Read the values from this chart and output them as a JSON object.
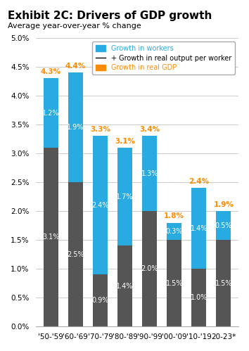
{
  "title": "Exhibit 2C: Drivers of GDP growth",
  "subtitle": "Average year-over-year % change",
  "categories": [
    "'50-'59",
    "'60-'69",
    "'70-'79",
    "'80-'89",
    "'90-'99",
    "'00-'09",
    "'10-'19",
    "20-23*"
  ],
  "workers_base": [
    3.1,
    2.5,
    0.9,
    1.4,
    2.0,
    1.5,
    1.0,
    1.5
  ],
  "output_per_worker": [
    1.2,
    1.9,
    2.4,
    1.7,
    1.3,
    0.3,
    1.4,
    0.5
  ],
  "gdp_growth": [
    4.3,
    4.4,
    3.3,
    3.1,
    3.4,
    1.8,
    2.4,
    1.9
  ],
  "color_workers_base": "#555555",
  "color_output_per_worker": "#29ABE2",
  "color_gdp_label": "#FF8C00",
  "ylim": [
    0,
    5.0
  ],
  "yticks": [
    0.0,
    0.5,
    1.0,
    1.5,
    2.0,
    2.5,
    3.0,
    3.5,
    4.0,
    4.5,
    5.0
  ],
  "legend_labels": [
    "Growth in workers",
    "+ Growth in real output per worker",
    "Growth in real GDP"
  ],
  "legend_colors": [
    "#29ABE2",
    "#000000",
    "#FF8C00"
  ],
  "bar_width": 0.6
}
